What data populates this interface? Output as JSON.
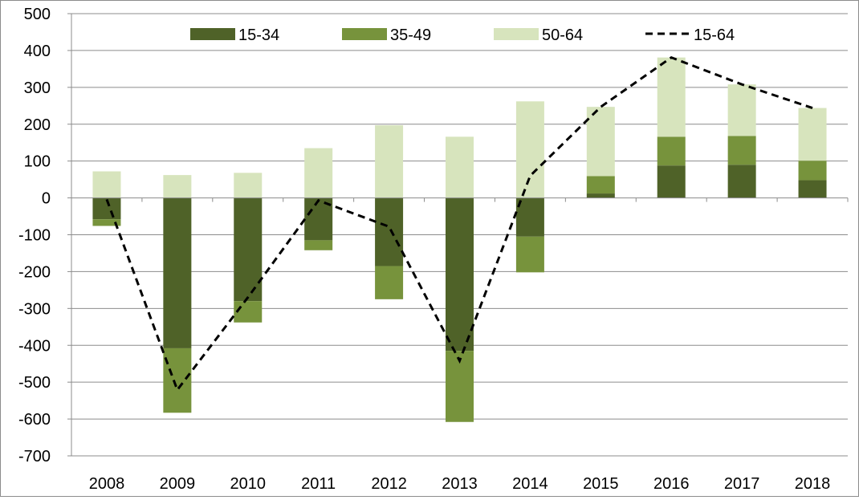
{
  "chart_data": {
    "type": "bar",
    "stacked": true,
    "title": "",
    "xlabel": "",
    "ylabel": "",
    "ylim": [
      -700,
      500
    ],
    "yticks": [
      500,
      400,
      300,
      200,
      100,
      0,
      -100,
      -200,
      -300,
      -400,
      -500,
      -600,
      -700
    ],
    "grid": true,
    "legend_position": "top",
    "categories": [
      "2008",
      "2009",
      "2010",
      "2011",
      "2012",
      "2013",
      "2014",
      "2015",
      "2016",
      "2017",
      "2018"
    ],
    "series": [
      {
        "name": "15-34",
        "kind": "bar",
        "color": "#4f6228",
        "values": [
          -58,
          -408,
          -280,
          -115,
          -185,
          -415,
          -105,
          12,
          88,
          90,
          48
        ]
      },
      {
        "name": "35-49",
        "kind": "bar",
        "color": "#77933c",
        "values": [
          -18,
          -175,
          -58,
          -27,
          -90,
          -193,
          -97,
          47,
          78,
          78,
          53
        ]
      },
      {
        "name": "50-64",
        "kind": "bar",
        "color": "#d7e4bd",
        "values": [
          72,
          62,
          68,
          135,
          197,
          166,
          262,
          188,
          215,
          140,
          143
        ]
      },
      {
        "name": "15-64",
        "kind": "line",
        "color": "#000000",
        "dash": "dashed",
        "values": [
          -4,
          -521,
          -270,
          -7,
          -78,
          -442,
          60,
          247,
          381,
          308,
          244
        ]
      }
    ]
  }
}
